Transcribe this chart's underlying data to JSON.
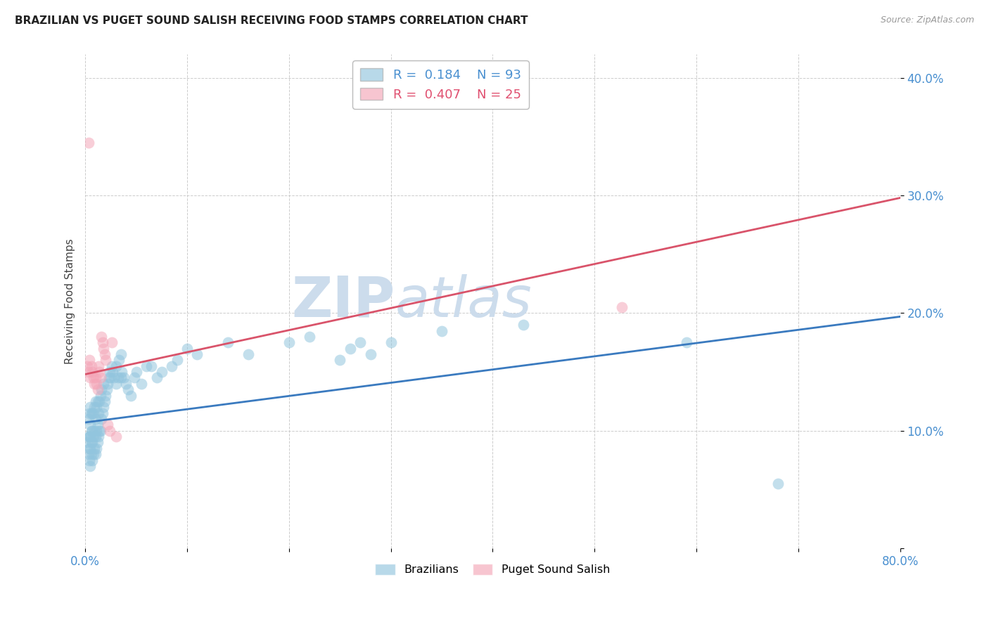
{
  "title": "BRAZILIAN VS PUGET SOUND SALISH RECEIVING FOOD STAMPS CORRELATION CHART",
  "source": "Source: ZipAtlas.com",
  "ylabel": "Receiving Food Stamps",
  "xlim": [
    0.0,
    0.8
  ],
  "ylim": [
    0.0,
    0.42
  ],
  "blue_R": 0.184,
  "blue_N": 93,
  "pink_R": 0.407,
  "pink_N": 25,
  "blue_color": "#92c5de",
  "pink_color": "#f4a6b8",
  "blue_line_color": "#3a7abf",
  "pink_line_color": "#d9536a",
  "blue_text_color": "#4a90d0",
  "pink_text_color": "#e05070",
  "watermark": "ZIPatlas",
  "watermark_color": "#ccdcec",
  "background_color": "#ffffff",
  "grid_color": "#cccccc",
  "blue_line_x": [
    0.0,
    0.8
  ],
  "blue_line_y": [
    0.107,
    0.197
  ],
  "pink_line_x": [
    0.0,
    0.8
  ],
  "pink_line_y": [
    0.148,
    0.298
  ],
  "blue_x": [
    0.002,
    0.003,
    0.003,
    0.003,
    0.004,
    0.004,
    0.004,
    0.004,
    0.005,
    0.005,
    0.005,
    0.005,
    0.005,
    0.006,
    0.006,
    0.006,
    0.006,
    0.007,
    0.007,
    0.007,
    0.007,
    0.008,
    0.008,
    0.008,
    0.009,
    0.009,
    0.009,
    0.01,
    0.01,
    0.01,
    0.01,
    0.011,
    0.011,
    0.011,
    0.012,
    0.012,
    0.012,
    0.013,
    0.013,
    0.014,
    0.014,
    0.015,
    0.015,
    0.016,
    0.016,
    0.017,
    0.018,
    0.018,
    0.019,
    0.02,
    0.021,
    0.022,
    0.023,
    0.024,
    0.025,
    0.026,
    0.027,
    0.028,
    0.03,
    0.03,
    0.032,
    0.033,
    0.035,
    0.035,
    0.036,
    0.038,
    0.04,
    0.042,
    0.045,
    0.048,
    0.05,
    0.055,
    0.06,
    0.065,
    0.07,
    0.075,
    0.085,
    0.09,
    0.1,
    0.11,
    0.14,
    0.16,
    0.2,
    0.22,
    0.25,
    0.26,
    0.27,
    0.28,
    0.3,
    0.35,
    0.43,
    0.59,
    0.68
  ],
  "blue_y": [
    0.09,
    0.08,
    0.095,
    0.11,
    0.075,
    0.085,
    0.095,
    0.115,
    0.07,
    0.085,
    0.095,
    0.105,
    0.12,
    0.08,
    0.09,
    0.1,
    0.115,
    0.075,
    0.09,
    0.1,
    0.115,
    0.08,
    0.095,
    0.115,
    0.085,
    0.1,
    0.12,
    0.08,
    0.095,
    0.11,
    0.125,
    0.085,
    0.1,
    0.12,
    0.09,
    0.105,
    0.125,
    0.095,
    0.115,
    0.1,
    0.125,
    0.1,
    0.13,
    0.11,
    0.135,
    0.115,
    0.12,
    0.14,
    0.125,
    0.13,
    0.135,
    0.14,
    0.145,
    0.15,
    0.145,
    0.155,
    0.15,
    0.145,
    0.14,
    0.155,
    0.145,
    0.16,
    0.145,
    0.165,
    0.15,
    0.145,
    0.14,
    0.135,
    0.13,
    0.145,
    0.15,
    0.14,
    0.155,
    0.155,
    0.145,
    0.15,
    0.155,
    0.16,
    0.17,
    0.165,
    0.175,
    0.165,
    0.175,
    0.18,
    0.16,
    0.17,
    0.175,
    0.165,
    0.175,
    0.185,
    0.19,
    0.175,
    0.055
  ],
  "pink_x": [
    0.002,
    0.003,
    0.004,
    0.005,
    0.006,
    0.007,
    0.008,
    0.009,
    0.01,
    0.011,
    0.012,
    0.013,
    0.014,
    0.015,
    0.016,
    0.017,
    0.018,
    0.019,
    0.02,
    0.022,
    0.024,
    0.026,
    0.03,
    0.527,
    0.003
  ],
  "pink_y": [
    0.155,
    0.15,
    0.16,
    0.145,
    0.155,
    0.15,
    0.145,
    0.14,
    0.145,
    0.14,
    0.135,
    0.155,
    0.15,
    0.145,
    0.18,
    0.175,
    0.17,
    0.165,
    0.16,
    0.105,
    0.1,
    0.175,
    0.095,
    0.205,
    0.345
  ]
}
